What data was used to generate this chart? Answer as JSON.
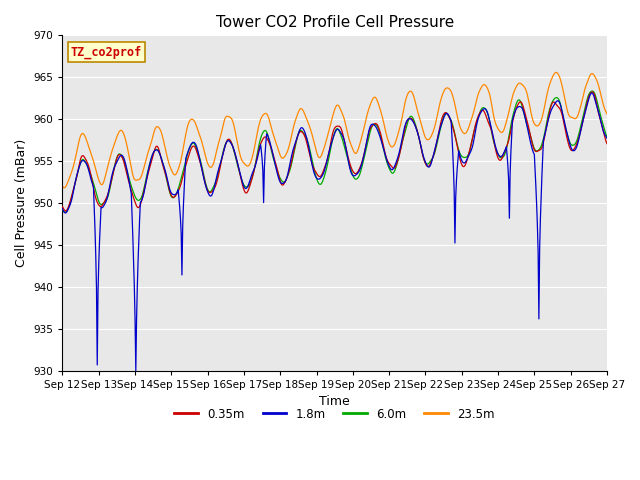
{
  "title": "Tower CO2 Profile Cell Pressure",
  "xlabel": "Time",
  "ylabel": "Cell Pressure (mBar)",
  "ylim": [
    930,
    970
  ],
  "yticks": [
    930,
    935,
    940,
    945,
    950,
    955,
    960,
    965,
    970
  ],
  "xtick_labels": [
    "Sep 12",
    "Sep 13",
    "Sep 14",
    "Sep 15",
    "Sep 16",
    "Sep 17",
    "Sep 18",
    "Sep 19",
    "Sep 20",
    "Sep 21",
    "Sep 22",
    "Sep 23",
    "Sep 24",
    "Sep 25",
    "Sep 26",
    "Sep 27"
  ],
  "colors": {
    "0.35m": "#cc0000",
    "1.8m": "#0000cc",
    "6.0m": "#00aa00",
    "23.5m": "#ff8800"
  },
  "legend_labels": [
    "0.35m",
    "1.8m",
    "6.0m",
    "23.5m"
  ],
  "annotation_text": "TZ_co2prof",
  "annotation_bg": "#ffffcc",
  "annotation_edge": "#bb8800",
  "annotation_text_color": "#cc0000",
  "background_color": "#e8e8e8",
  "grid_color": "#ffffff",
  "linewidth": 0.9,
  "title_fontsize": 11,
  "axis_label_fontsize": 9,
  "tick_fontsize": 7.5
}
